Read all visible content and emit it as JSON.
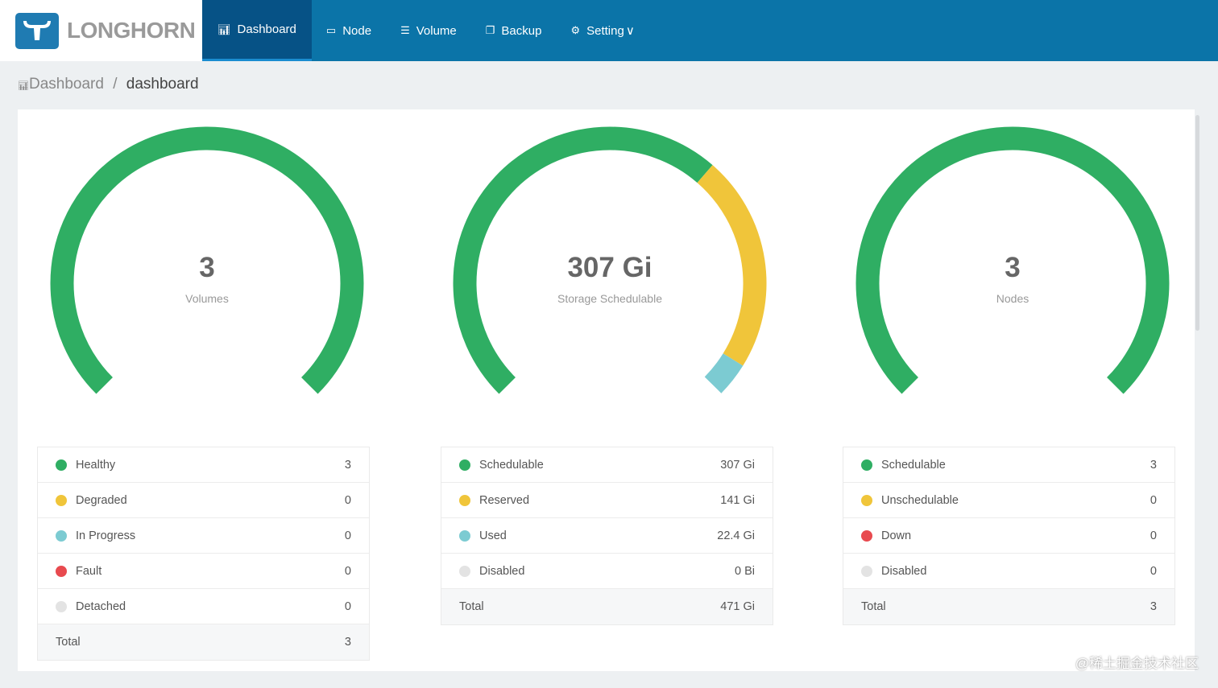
{
  "brand": {
    "name": "LONGHORN"
  },
  "nav": [
    {
      "label": "Dashboard",
      "icon": "bar-chart-icon",
      "active": true
    },
    {
      "label": "Node",
      "icon": "laptop-icon"
    },
    {
      "label": "Volume",
      "icon": "database-icon"
    },
    {
      "label": "Backup",
      "icon": "copy-icon"
    },
    {
      "label": "Setting",
      "icon": "gear-icon",
      "dropdown": true
    }
  ],
  "breadcrumb": {
    "parent": "Dashboard",
    "sep": "/",
    "current": "dashboard"
  },
  "colors": {
    "green": "#2fae63",
    "yellow": "#f0c53a",
    "teal": "#7ccbd2",
    "red": "#e84a4f",
    "grey": "#e3e3e3"
  },
  "gauges": [
    {
      "value": "3",
      "label": "Volumes",
      "segments": [
        {
          "v": 3,
          "c": "#2fae63"
        }
      ],
      "total": 3,
      "rows": [
        {
          "label": "Healthy",
          "value": "3",
          "color": "#2fae63"
        },
        {
          "label": "Degraded",
          "value": "0",
          "color": "#f0c53a"
        },
        {
          "label": "In Progress",
          "value": "0",
          "color": "#7ccbd2"
        },
        {
          "label": "Fault",
          "value": "0",
          "color": "#e84a4f"
        },
        {
          "label": "Detached",
          "value": "0",
          "color": "#e3e3e3"
        }
      ],
      "total_label": "Total",
      "total_value": "3"
    },
    {
      "value": "307 Gi",
      "label": "Storage Schedulable",
      "segments": [
        {
          "v": 307,
          "c": "#2fae63"
        },
        {
          "v": 141,
          "c": "#f0c53a"
        },
        {
          "v": 22.4,
          "c": "#7ccbd2"
        }
      ],
      "total": 471,
      "rows": [
        {
          "label": "Schedulable",
          "value": "307 Gi",
          "color": "#2fae63"
        },
        {
          "label": "Reserved",
          "value": "141 Gi",
          "color": "#f0c53a"
        },
        {
          "label": "Used",
          "value": "22.4 Gi",
          "color": "#7ccbd2"
        },
        {
          "label": "Disabled",
          "value": "0 Bi",
          "color": "#e3e3e3"
        }
      ],
      "total_label": "Total",
      "total_value": "471 Gi"
    },
    {
      "value": "3",
      "label": "Nodes",
      "segments": [
        {
          "v": 3,
          "c": "#2fae63"
        }
      ],
      "total": 3,
      "rows": [
        {
          "label": "Schedulable",
          "value": "3",
          "color": "#2fae63"
        },
        {
          "label": "Unschedulable",
          "value": "0",
          "color": "#f0c53a"
        },
        {
          "label": "Down",
          "value": "0",
          "color": "#e84a4f"
        },
        {
          "label": "Disabled",
          "value": "0",
          "color": "#e3e3e3"
        }
      ],
      "total_label": "Total",
      "total_value": "3"
    }
  ],
  "watermark": "@稀土掘金技术社区"
}
